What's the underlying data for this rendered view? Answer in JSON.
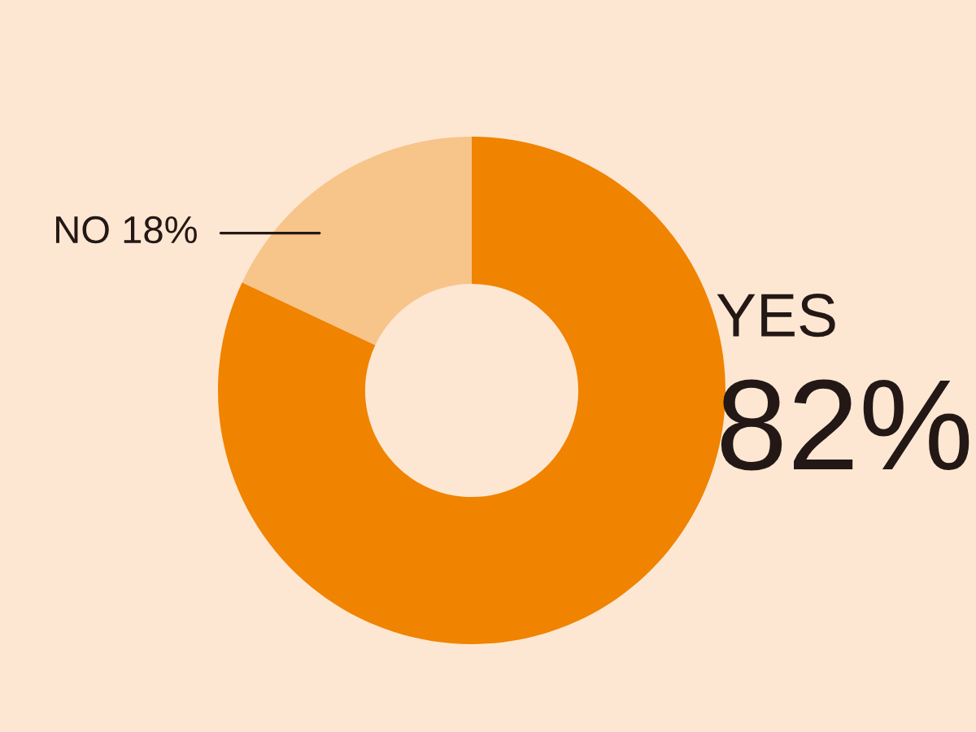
{
  "chart_data": {
    "type": "donut",
    "categories": [
      "YES",
      "NO"
    ],
    "values": [
      82,
      18
    ],
    "value_labels": [
      "82%",
      "18%"
    ],
    "colors": [
      "#f08300",
      "#f7c48a"
    ],
    "legend": false
  }
}
